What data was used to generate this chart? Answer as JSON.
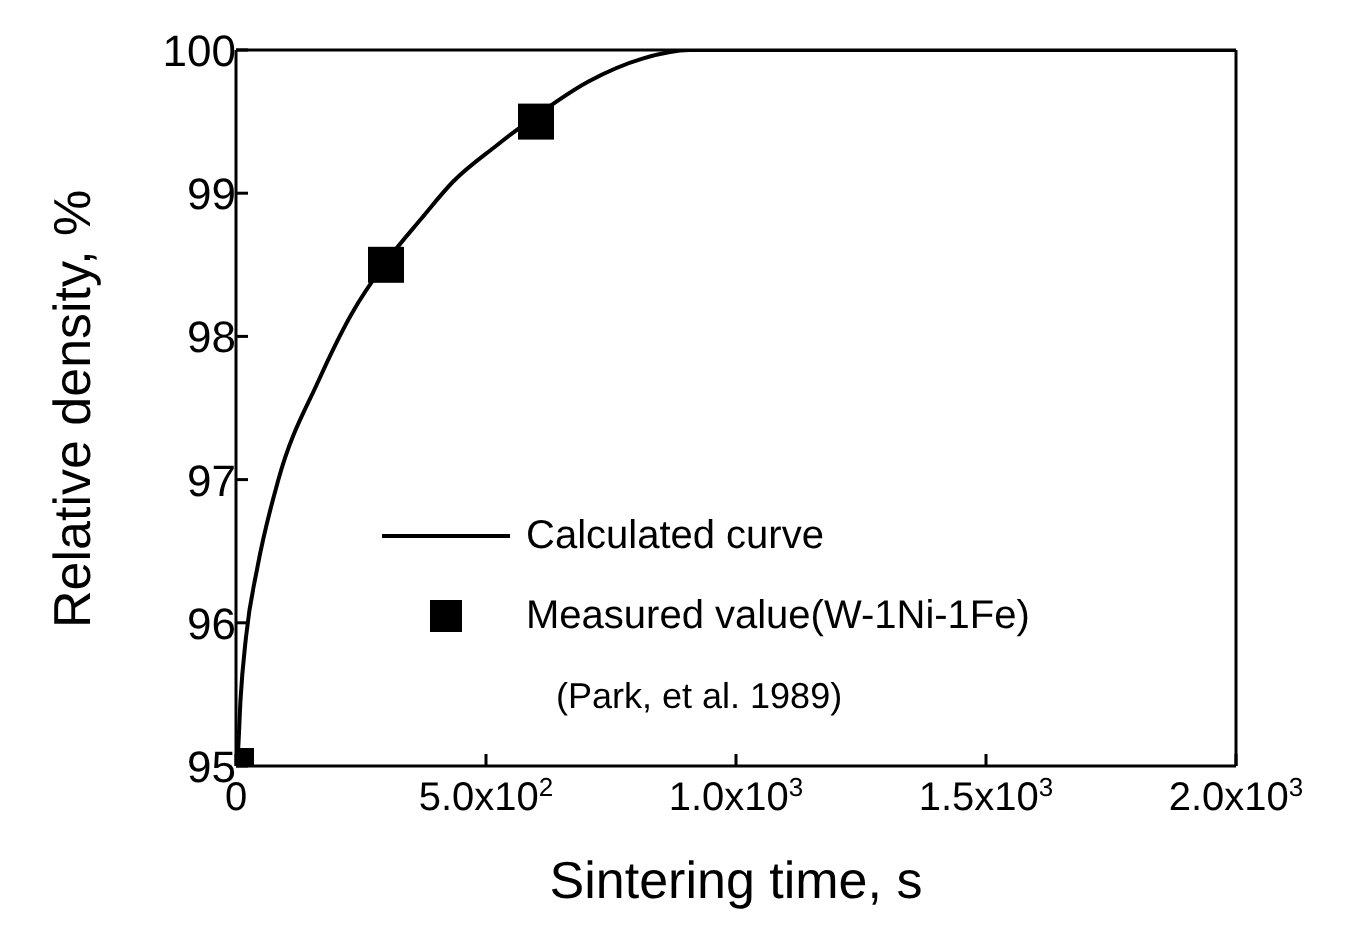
{
  "chart_data": {
    "type": "line",
    "xlabel": "Sintering time, s",
    "ylabel": "Relative density, %",
    "xlim": [
      0,
      2000
    ],
    "ylim": [
      95,
      100
    ],
    "xticks": [
      0,
      {
        "value": 500,
        "label": "5.0x10$^{2}$"
      },
      {
        "value": 1000,
        "label": "1.0x10$^{3}$"
      },
      {
        "value": 1500,
        "label": "1.5x10$^{3}$"
      },
      {
        "value": 2000,
        "label": "2.0x10$^{3}$"
      }
    ],
    "yticks": [
      95,
      96,
      97,
      98,
      99,
      100
    ],
    "legend": "bottom right",
    "annotations": [
      "(Park, et al. 1989)"
    ],
    "series": [
      {
        "name": "Calculated curve",
        "color": "#000000",
        "marker": "none",
        "line_style": "solid",
        "x": [
          0,
          4,
          9,
          20,
          43,
          84,
          165,
          230,
          300,
          370,
          434,
          520,
          596,
          705,
          813,
          907,
          1000,
          1500,
          2000
        ],
        "values": [
          95,
          95.1,
          95.46,
          95.9,
          96.39,
          96.99,
          97.69,
          98.15,
          98.52,
          98.82,
          99.08,
          99.33,
          99.53,
          99.78,
          99.94,
          100,
          100,
          100,
          100
        ]
      },
      {
        "name": "Measured value(W-1Ni-1Fe)",
        "type": "scatter",
        "color": "#000000",
        "marker": "square",
        "x": [
          0,
          300,
          600
        ],
        "values": [
          95,
          98.5,
          99.5
        ]
      }
    ]
  }
}
